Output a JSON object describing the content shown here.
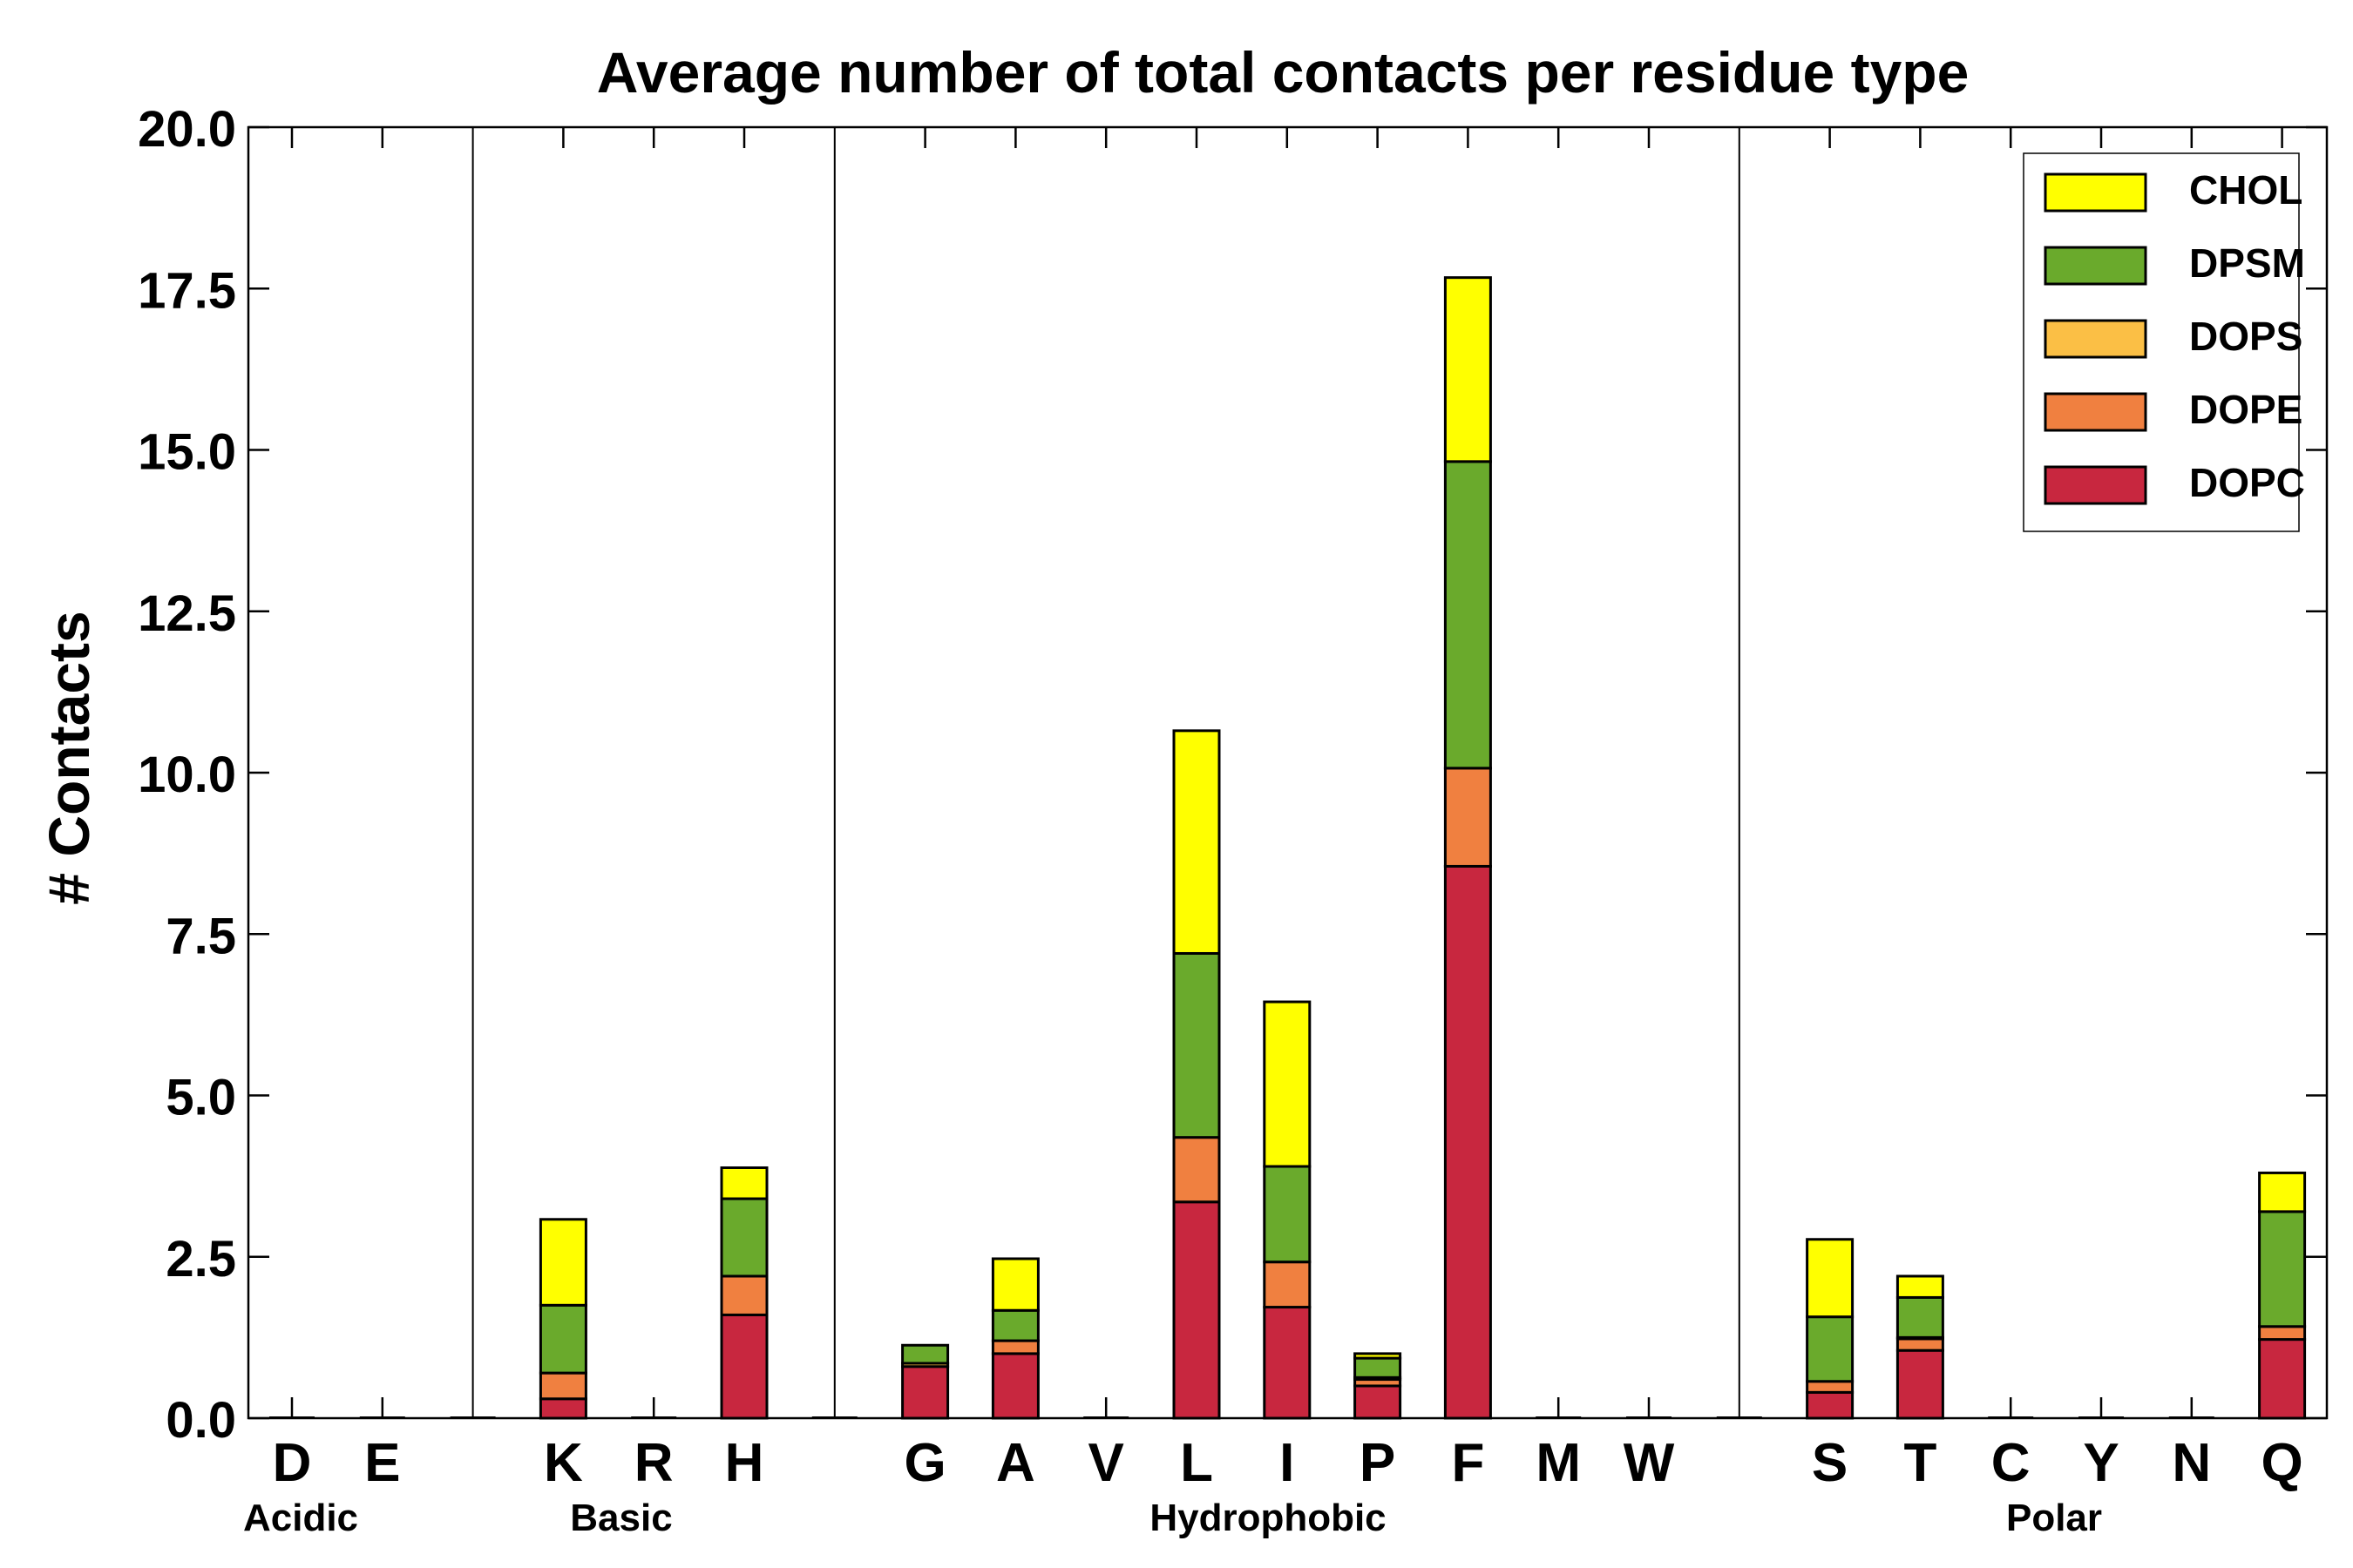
{
  "chart_data": {
    "type": "bar",
    "stacked": true,
    "title": "Average number of total contacts per residue type",
    "xlabel": "",
    "ylabel": "# Contacts",
    "ylim": [
      0,
      20
    ],
    "yticks": [
      "0.0",
      "2.5",
      "5.0",
      "7.5",
      "10.0",
      "12.5",
      "15.0",
      "17.5",
      "20.0"
    ],
    "grid": false,
    "legend_position": "top-right",
    "categories": [
      "D",
      "E",
      "K",
      "R",
      "H",
      "G",
      "A",
      "V",
      "L",
      "I",
      "P",
      "F",
      "M",
      "W",
      "S",
      "T",
      "C",
      "Y",
      "N",
      "Q"
    ],
    "groups": [
      {
        "name": "Acidic",
        "members": [
          "D",
          "E"
        ]
      },
      {
        "name": "Basic",
        "members": [
          "K",
          "R",
          "H"
        ]
      },
      {
        "name": "Hydrophobic",
        "members": [
          "G",
          "A",
          "V",
          "L",
          "I",
          "P",
          "F",
          "M",
          "W"
        ]
      },
      {
        "name": "Polar",
        "members": [
          "S",
          "T",
          "C",
          "Y",
          "N",
          "Q"
        ]
      }
    ],
    "series": [
      {
        "name": "DOPC",
        "color": "#c8273f",
        "values": [
          0,
          0,
          0.3,
          0,
          1.6,
          0.8,
          1.0,
          0,
          3.35,
          1.72,
          0.5,
          8.55,
          0,
          0,
          0.4,
          1.05,
          0,
          0,
          0,
          1.22
        ]
      },
      {
        "name": "DOPE",
        "color": "#f08040",
        "values": [
          0,
          0,
          0.4,
          0,
          0.6,
          0,
          0.2,
          0,
          1.0,
          0.7,
          0.1,
          1.52,
          0,
          0,
          0.17,
          0.18,
          0,
          0,
          0,
          0.2
        ]
      },
      {
        "name": "DOPS",
        "color": "#fbbf45",
        "values": [
          0,
          0,
          0,
          0,
          0,
          0.05,
          0,
          0,
          0,
          0,
          0.03,
          0,
          0,
          0,
          0,
          0.02,
          0,
          0,
          0,
          0
        ]
      },
      {
        "name": "DPSM",
        "color": "#6aaa2c",
        "values": [
          0,
          0,
          1.05,
          0,
          1.2,
          0.28,
          0.47,
          0,
          2.85,
          1.48,
          0.3,
          4.75,
          0,
          0,
          1.0,
          0.62,
          0,
          0,
          0,
          1.78
        ]
      },
      {
        "name": "CHOL",
        "color": "#ffff00",
        "values": [
          0,
          0,
          1.33,
          0,
          0.48,
          0,
          0.8,
          0,
          3.45,
          2.55,
          0.07,
          2.85,
          0,
          0,
          1.2,
          0.33,
          0,
          0,
          0,
          0.6
        ]
      }
    ],
    "legend_order": [
      "CHOL",
      "DPSM",
      "DOPS",
      "DOPE",
      "DOPC"
    ]
  }
}
